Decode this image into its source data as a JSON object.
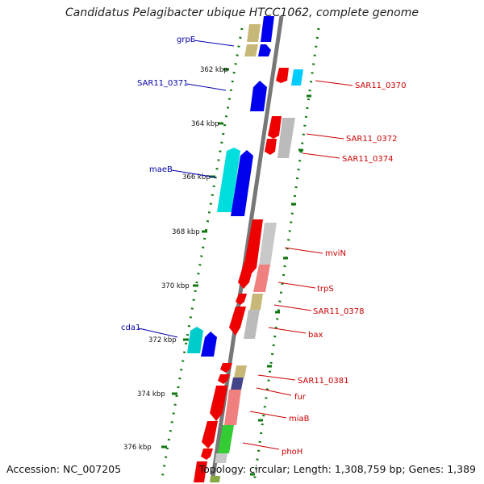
{
  "title": "Candidatus Pelagibacter ubique HTCC1062, complete genome",
  "footer": {
    "accession": "Accession: NC_007205",
    "summary": "Topology: circular; Length: 1,308,759 bp; Genes: 1,389"
  },
  "colors": {
    "forward_blue": "#0000ee",
    "cyan": "#00dddd",
    "reverse_red": "#ee0000",
    "tan": "#c8b878",
    "grey": "#bbbbbb",
    "pink": "#f08080",
    "green": "#33cc33",
    "navy": "#444488",
    "backbone": "#777777",
    "tick_green": "#117711",
    "label_blue": "#0000aa",
    "label_red": "#cc0000"
  },
  "kbp_ticks": [
    "362 kbp",
    "364 kbp",
    "366 kbp",
    "368 kbp",
    "370 kbp",
    "372 kbp",
    "374 kbp",
    "376 kbp"
  ],
  "left_labels": [
    "grpE",
    "SAR11_0371",
    "maeB",
    "cda1"
  ],
  "right_labels": [
    "SAR11_0370",
    "SAR11_0372",
    "SAR11_0374",
    "mviN",
    "trpS",
    "SAR11_0378",
    "bax",
    "SAR11_0381",
    "fur",
    "miaB",
    "phoH"
  ]
}
